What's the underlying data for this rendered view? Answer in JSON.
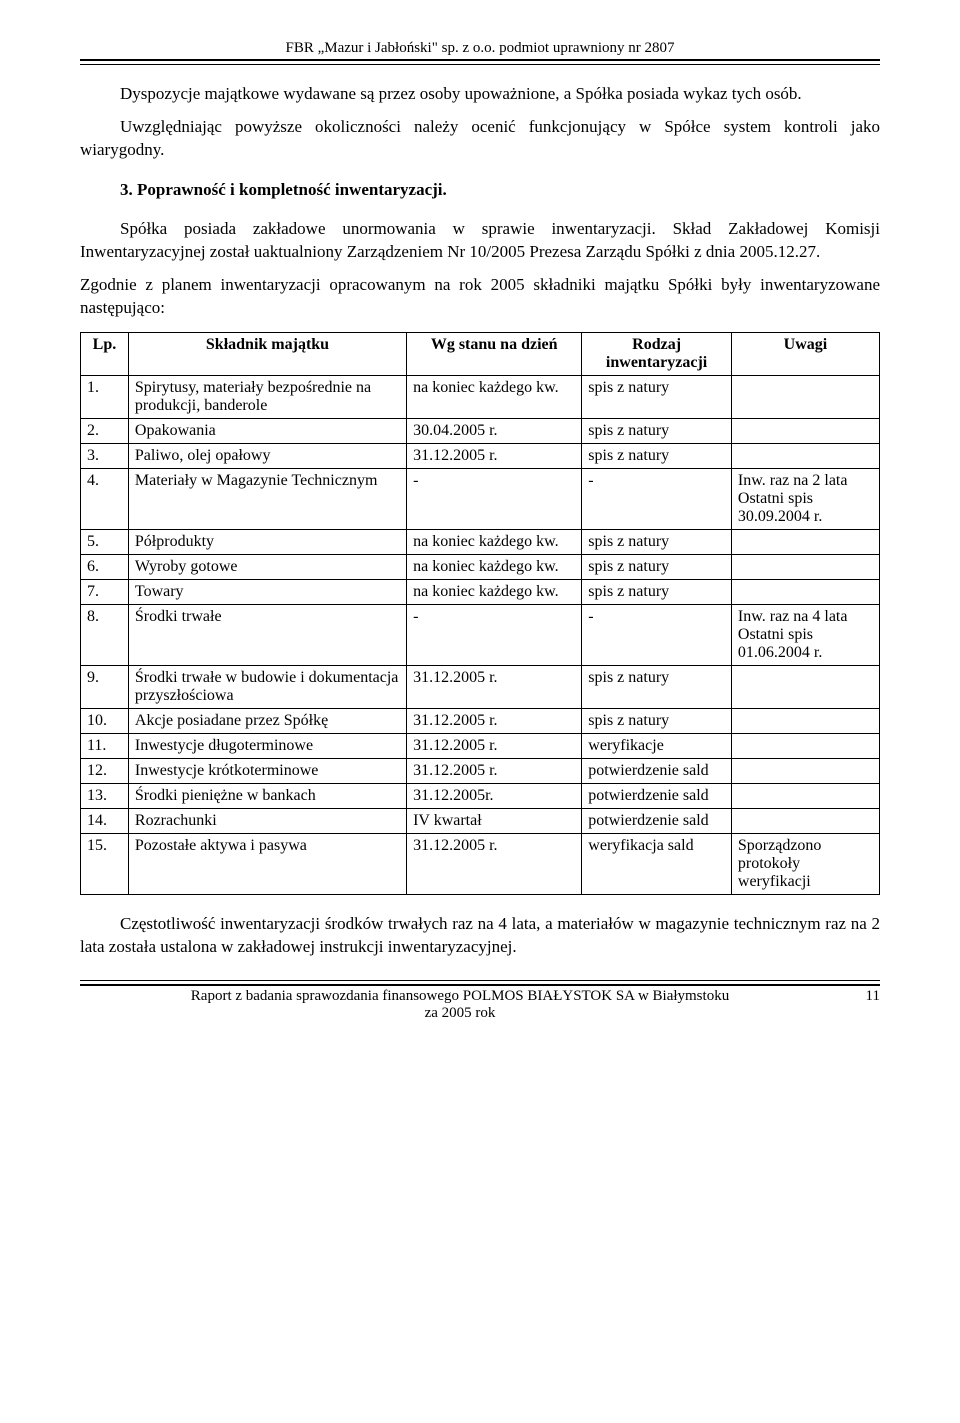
{
  "header": {
    "text": "FBR „Mazur i Jabłoński\" sp. z o.o. podmiot uprawniony nr 2807"
  },
  "paragraphs": {
    "p1": "Dyspozycje majątkowe wydawane są przez osoby upoważnione, a Spółka posiada wykaz tych osób.",
    "p2": "Uwzględniając powyższe okoliczności należy ocenić funkcjonujący w Spółce system kontroli jako wiarygodny.",
    "section3": "3.   Poprawność i kompletność inwentaryzacji.",
    "p3": "Spółka posiada zakładowe unormowania w sprawie inwentaryzacji. Skład Zakładowej Komisji Inwentaryzacyjnej został uaktualniony Zarządzeniem Nr 10/2005 Prezesa Zarządu Spółki z dnia 2005.12.27.",
    "p4": "Zgodnie z planem inwentaryzacji opracowanym na rok 2005 składniki majątku Spółki były inwentaryzowane następująco:",
    "p5": "Częstotliwość inwentaryzacji środków trwałych raz na 4 lata, a materiałów w magazynie technicznym raz na 2 lata została ustalona w zakładowej instrukcji inwentaryzacyjnej."
  },
  "table": {
    "headers": {
      "lp": "Lp.",
      "name": "Składnik majątku",
      "stan": "Wg stanu na dzień",
      "rodzaj": "Rodzaj inwentaryzacji",
      "uwagi": "Uwagi"
    },
    "rows": [
      {
        "lp": "1.",
        "name": "Spirytusy, materiały bezpośrednie na produkcji, banderole",
        "stan": "na koniec każdego kw.",
        "rodzaj": "spis z natury",
        "uwagi": ""
      },
      {
        "lp": "2.",
        "name": "Opakowania",
        "stan": "30.04.2005 r.",
        "rodzaj": "spis z natury",
        "uwagi": ""
      },
      {
        "lp": "3.",
        "name": "Paliwo, olej opałowy",
        "stan": "31.12.2005 r.",
        "rodzaj": "spis z natury",
        "uwagi": ""
      },
      {
        "lp": "4.",
        "name": "Materiały w Magazynie Technicznym",
        "stan": "-",
        "rodzaj": "-",
        "uwagi": "Inw. raz na 2 lata Ostatni spis 30.09.2004 r."
      },
      {
        "lp": "5.",
        "name": "Półprodukty",
        "stan": "na koniec każdego kw.",
        "rodzaj": "spis z natury",
        "uwagi": ""
      },
      {
        "lp": "6.",
        "name": "Wyroby gotowe",
        "stan": "na koniec każdego kw.",
        "rodzaj": "spis z natury",
        "uwagi": ""
      },
      {
        "lp": "7.",
        "name": "Towary",
        "stan": "na koniec każdego kw.",
        "rodzaj": "spis z natury",
        "uwagi": ""
      },
      {
        "lp": "8.",
        "name": "Środki trwałe",
        "stan": "-",
        "rodzaj": "-",
        "uwagi": "Inw. raz na 4 lata Ostatni spis 01.06.2004 r."
      },
      {
        "lp": "9.",
        "name": "Środki trwałe w budowie i dokumentacja przyszłościowa",
        "stan": "31.12.2005 r.",
        "rodzaj": "spis z natury",
        "uwagi": ""
      },
      {
        "lp": "10.",
        "name": "Akcje posiadane przez Spółkę",
        "stan": "31.12.2005 r.",
        "rodzaj": "spis z natury",
        "uwagi": ""
      },
      {
        "lp": "11.",
        "name": "Inwestycje długoterminowe",
        "stan": "31.12.2005 r.",
        "rodzaj": "weryfikacje",
        "uwagi": ""
      },
      {
        "lp": "12.",
        "name": "Inwestycje krótkoterminowe",
        "stan": "31.12.2005 r.",
        "rodzaj": "potwierdzenie sald",
        "uwagi": ""
      },
      {
        "lp": "13.",
        "name": "Środki pieniężne w bankach",
        "stan": "31.12.2005r.",
        "rodzaj": "potwierdzenie sald",
        "uwagi": ""
      },
      {
        "lp": "14.",
        "name": "Rozrachunki",
        "stan": "IV kwartał",
        "rodzaj": "potwierdzenie sald",
        "uwagi": ""
      },
      {
        "lp": "15.",
        "name": "Pozostałe aktywa i pasywa",
        "stan": "31.12.2005 r.",
        "rodzaj": "weryfikacja sald",
        "uwagi": "Sporządzono protokoły weryfikacji"
      }
    ]
  },
  "footer": {
    "line1": "Raport z badania sprawozdania finansowego POLMOS BIAŁYSTOK SA w Białymstoku",
    "line2": "za 2005 rok",
    "page": "11"
  }
}
